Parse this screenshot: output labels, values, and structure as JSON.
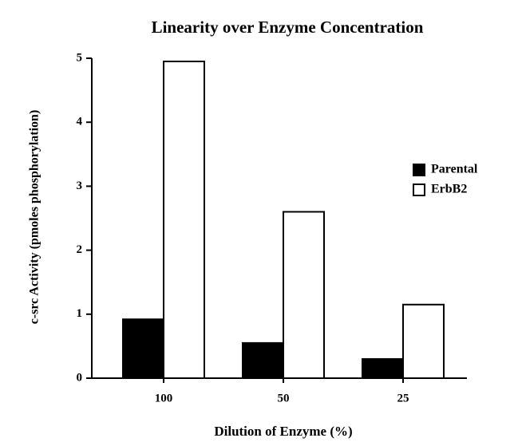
{
  "chart_data": {
    "type": "bar",
    "title": "Linearity over Enzyme Concentration",
    "x_label": "Dilution of Enzyme (%)",
    "y_label": "c-src Activity  (pmoles phosphorylation)",
    "categories": [
      "100",
      "50",
      "25"
    ],
    "series": [
      {
        "name": "Parental",
        "color": "#000000",
        "values": [
          0.92,
          0.55,
          0.3
        ]
      },
      {
        "name": "ErbB2",
        "color": "#ffffff",
        "values": [
          4.95,
          2.6,
          1.15
        ]
      }
    ],
    "ylim": [
      0,
      5
    ],
    "yticks": [
      0,
      1,
      2,
      3,
      4,
      5
    ],
    "legend": "right",
    "grid": false
  }
}
